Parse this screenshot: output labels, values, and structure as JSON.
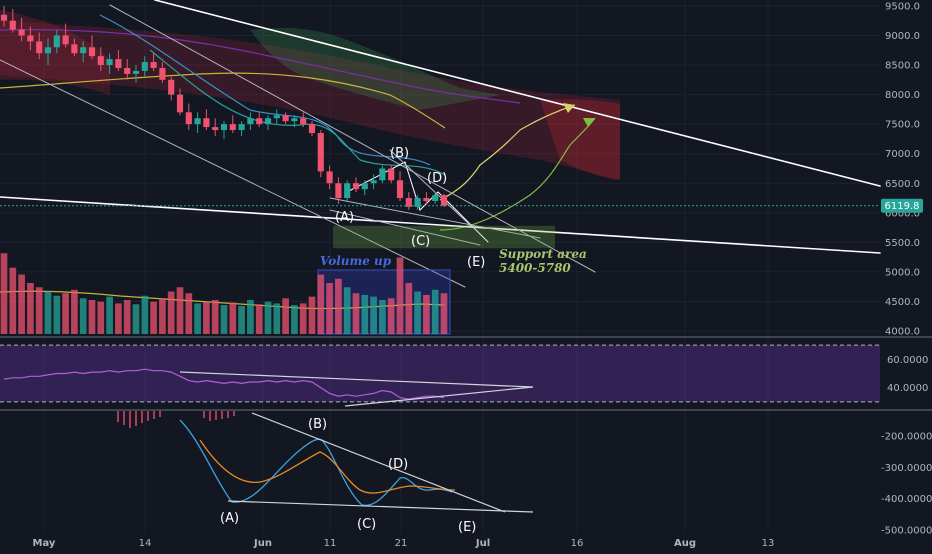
{
  "chart_data": [
    {
      "type": "candlestick",
      "panel": "price",
      "yaxis": {
        "ticks": [
          "9500.0",
          "9000.0",
          "8500.0",
          "8000.0",
          "7500.0",
          "7000.0",
          "6500.0",
          "6000.0",
          "5500.0",
          "5000.0",
          "4500.0",
          "4000.0"
        ],
        "range": [
          3950,
          9600
        ]
      },
      "last_price": {
        "label": "6119.8",
        "value": 6119.8,
        "color": "#26a69a"
      },
      "candles": [
        [
          9350,
          9500,
          9150,
          9250
        ],
        [
          9250,
          9450,
          9050,
          9100
        ],
        [
          9100,
          9300,
          8900,
          9000
        ],
        [
          9000,
          9150,
          8750,
          8900
        ],
        [
          8900,
          9050,
          8600,
          8700
        ],
        [
          8700,
          8950,
          8500,
          8800
        ],
        [
          8800,
          9100,
          8700,
          9000
        ],
        [
          9000,
          9200,
          8800,
          8850
        ],
        [
          8850,
          8950,
          8650,
          8700
        ],
        [
          8700,
          8900,
          8550,
          8800
        ],
        [
          8800,
          9000,
          8600,
          8650
        ],
        [
          8650,
          8800,
          8400,
          8500
        ],
        [
          8500,
          8700,
          8350,
          8600
        ],
        [
          8600,
          8750,
          8400,
          8450
        ],
        [
          8450,
          8600,
          8250,
          8350
        ],
        [
          8350,
          8500,
          8200,
          8400
        ],
        [
          8400,
          8650,
          8300,
          8550
        ],
        [
          8550,
          8700,
          8400,
          8450
        ],
        [
          8450,
          8550,
          8200,
          8250
        ],
        [
          8250,
          8300,
          7900,
          8000
        ],
        [
          8000,
          8100,
          7650,
          7700
        ],
        [
          7700,
          7850,
          7400,
          7500
        ],
        [
          7500,
          7700,
          7350,
          7600
        ],
        [
          7600,
          7750,
          7400,
          7450
        ],
        [
          7450,
          7600,
          7300,
          7400
        ],
        [
          7400,
          7550,
          7250,
          7500
        ],
        [
          7500,
          7650,
          7350,
          7400
        ],
        [
          7400,
          7550,
          7300,
          7500
        ],
        [
          7500,
          7700,
          7400,
          7600
        ],
        [
          7600,
          7700,
          7450,
          7500
        ],
        [
          7500,
          7650,
          7400,
          7600
        ],
        [
          7600,
          7750,
          7500,
          7650
        ],
        [
          7650,
          7700,
          7500,
          7550
        ],
        [
          7550,
          7650,
          7450,
          7600
        ],
        [
          7600,
          7700,
          7450,
          7500
        ],
        [
          7500,
          7550,
          7300,
          7350
        ],
        [
          7350,
          7400,
          6600,
          6700
        ],
        [
          6700,
          6800,
          6400,
          6500
        ],
        [
          6500,
          6600,
          6150,
          6250
        ],
        [
          6250,
          6550,
          6200,
          6500
        ],
        [
          6500,
          6600,
          6350,
          6400
        ],
        [
          6400,
          6550,
          6300,
          6500
        ],
        [
          6500,
          6650,
          6400,
          6550
        ],
        [
          6550,
          6800,
          6500,
          6750
        ],
        [
          6750,
          6800,
          6500,
          6550
        ],
        [
          6550,
          6700,
          6200,
          6250
        ],
        [
          6250,
          6350,
          6050,
          6100
        ],
        [
          6100,
          6300,
          6050,
          6250
        ],
        [
          6250,
          6350,
          6150,
          6200
        ],
        [
          6200,
          6350,
          6150,
          6300
        ],
        [
          6300,
          6320,
          6100,
          6120
        ]
      ],
      "annotations": [
        "(A)",
        "(B)",
        "(C)",
        "(D)",
        "(E)"
      ],
      "text_notes": {
        "support_title": "Support area",
        "support_range": "5400-5780",
        "volume_note": "Volume up"
      },
      "support_zone": [
        5400,
        5780
      ],
      "volume": [
        95,
        78,
        70,
        60,
        55,
        50,
        45,
        48,
        52,
        42,
        40,
        38,
        44,
        36,
        40,
        35,
        45,
        38,
        42,
        50,
        55,
        48,
        36,
        38,
        40,
        34,
        37,
        33,
        40,
        35,
        38,
        36,
        42,
        34,
        36,
        44,
        70,
        60,
        65,
        55,
        48,
        46,
        44,
        40,
        42,
        90,
        60,
        50,
        46,
        52,
        48
      ]
    },
    {
      "type": "line",
      "panel": "oscillator",
      "yaxis": {
        "ticks": [
          "60.0000",
          "40.0000"
        ],
        "range": [
          25,
          75
        ]
      },
      "reference_levels": [
        70,
        30
      ],
      "values": [
        46,
        47,
        47,
        48,
        48,
        49,
        50,
        50,
        51,
        50,
        51,
        51,
        52,
        51,
        52,
        52,
        53,
        52,
        52,
        51,
        48,
        45,
        44,
        45,
        44,
        43,
        44,
        43,
        44,
        44,
        45,
        44,
        45,
        44,
        45,
        44,
        40,
        36,
        34,
        35,
        34,
        35,
        36,
        38,
        37,
        33,
        32,
        33,
        34,
        34,
        33
      ]
    },
    {
      "type": "line",
      "panel": "macd",
      "yaxis": {
        "ticks": [
          "-200.0000",
          "-300.0000",
          "-400.0000",
          "-500.0000"
        ],
        "range": [
          -510,
          -120
        ]
      },
      "annotations": [
        "(A)",
        "(B)",
        "(C)",
        "(D)",
        "(E)"
      ]
    }
  ],
  "xaxis": {
    "ticks": [
      "May",
      "14",
      "Jun",
      "11",
      "21",
      "Jul",
      "16",
      "Aug",
      "13"
    ]
  }
}
